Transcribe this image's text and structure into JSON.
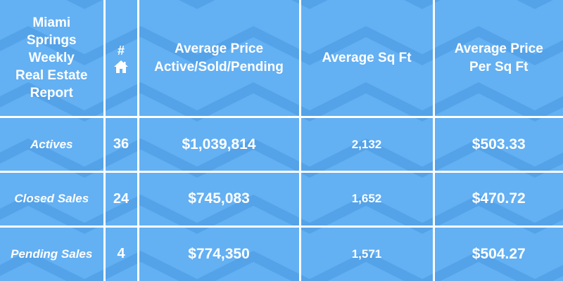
{
  "report": {
    "title_lines": [
      "Miami",
      "Springs",
      "Weekly",
      "Real Estate",
      "Report"
    ],
    "headers": {
      "count_symbol": "#",
      "count_icon": "house-icon",
      "avg_price_lines": [
        "Average Price",
        "Active/Sold/Pending"
      ],
      "avg_sqft": "Average Sq Ft",
      "avg_ppsf_lines": [
        "Average Price",
        "Per Sq Ft"
      ]
    },
    "rows": [
      {
        "label": "Actives",
        "count": "36",
        "avg_price": "$1,039,814",
        "avg_sqft": "2,132",
        "avg_ppsf": "$503.33"
      },
      {
        "label": "Closed Sales",
        "count": "24",
        "avg_price": "$745,083",
        "avg_sqft": "1,652",
        "avg_ppsf": "$470.72"
      },
      {
        "label": "Pending Sales",
        "count": "4",
        "avg_price": "$774,350",
        "avg_sqft": "1,571",
        "avg_ppsf": "$504.27"
      }
    ],
    "colors": {
      "background": "#63b0f3",
      "pattern": "#54a2e8",
      "grid_lines": "#ffffff",
      "text": "#ffffff"
    }
  }
}
